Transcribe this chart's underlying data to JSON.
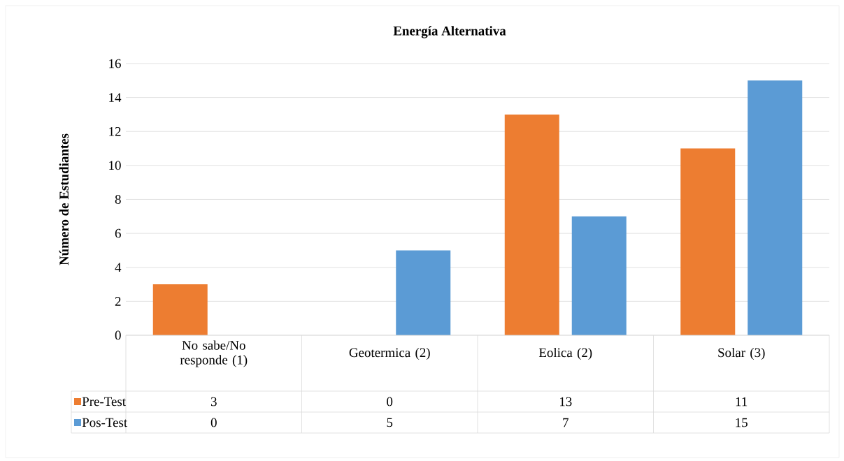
{
  "chart_data": {
    "type": "bar",
    "title": "Energía Alternativa",
    "ylabel": "Número de Estudiantes",
    "categories": [
      "No sabe/No responde (1)",
      "Geotermica (2)",
      "Eolica (2)",
      "Solar (3)"
    ],
    "series": [
      {
        "name": "Pre-Test",
        "color": "#ed7d31",
        "values": [
          3,
          0,
          13,
          11
        ]
      },
      {
        "name": "Pos-Test",
        "color": "#5b9bd5",
        "values": [
          0,
          5,
          7,
          15
        ]
      }
    ],
    "ylim": [
      0,
      16
    ],
    "yticks": [
      0,
      2,
      4,
      6,
      8,
      10,
      12,
      14,
      16
    ],
    "grid": "y",
    "legend": "bottom",
    "data_labels": true
  }
}
